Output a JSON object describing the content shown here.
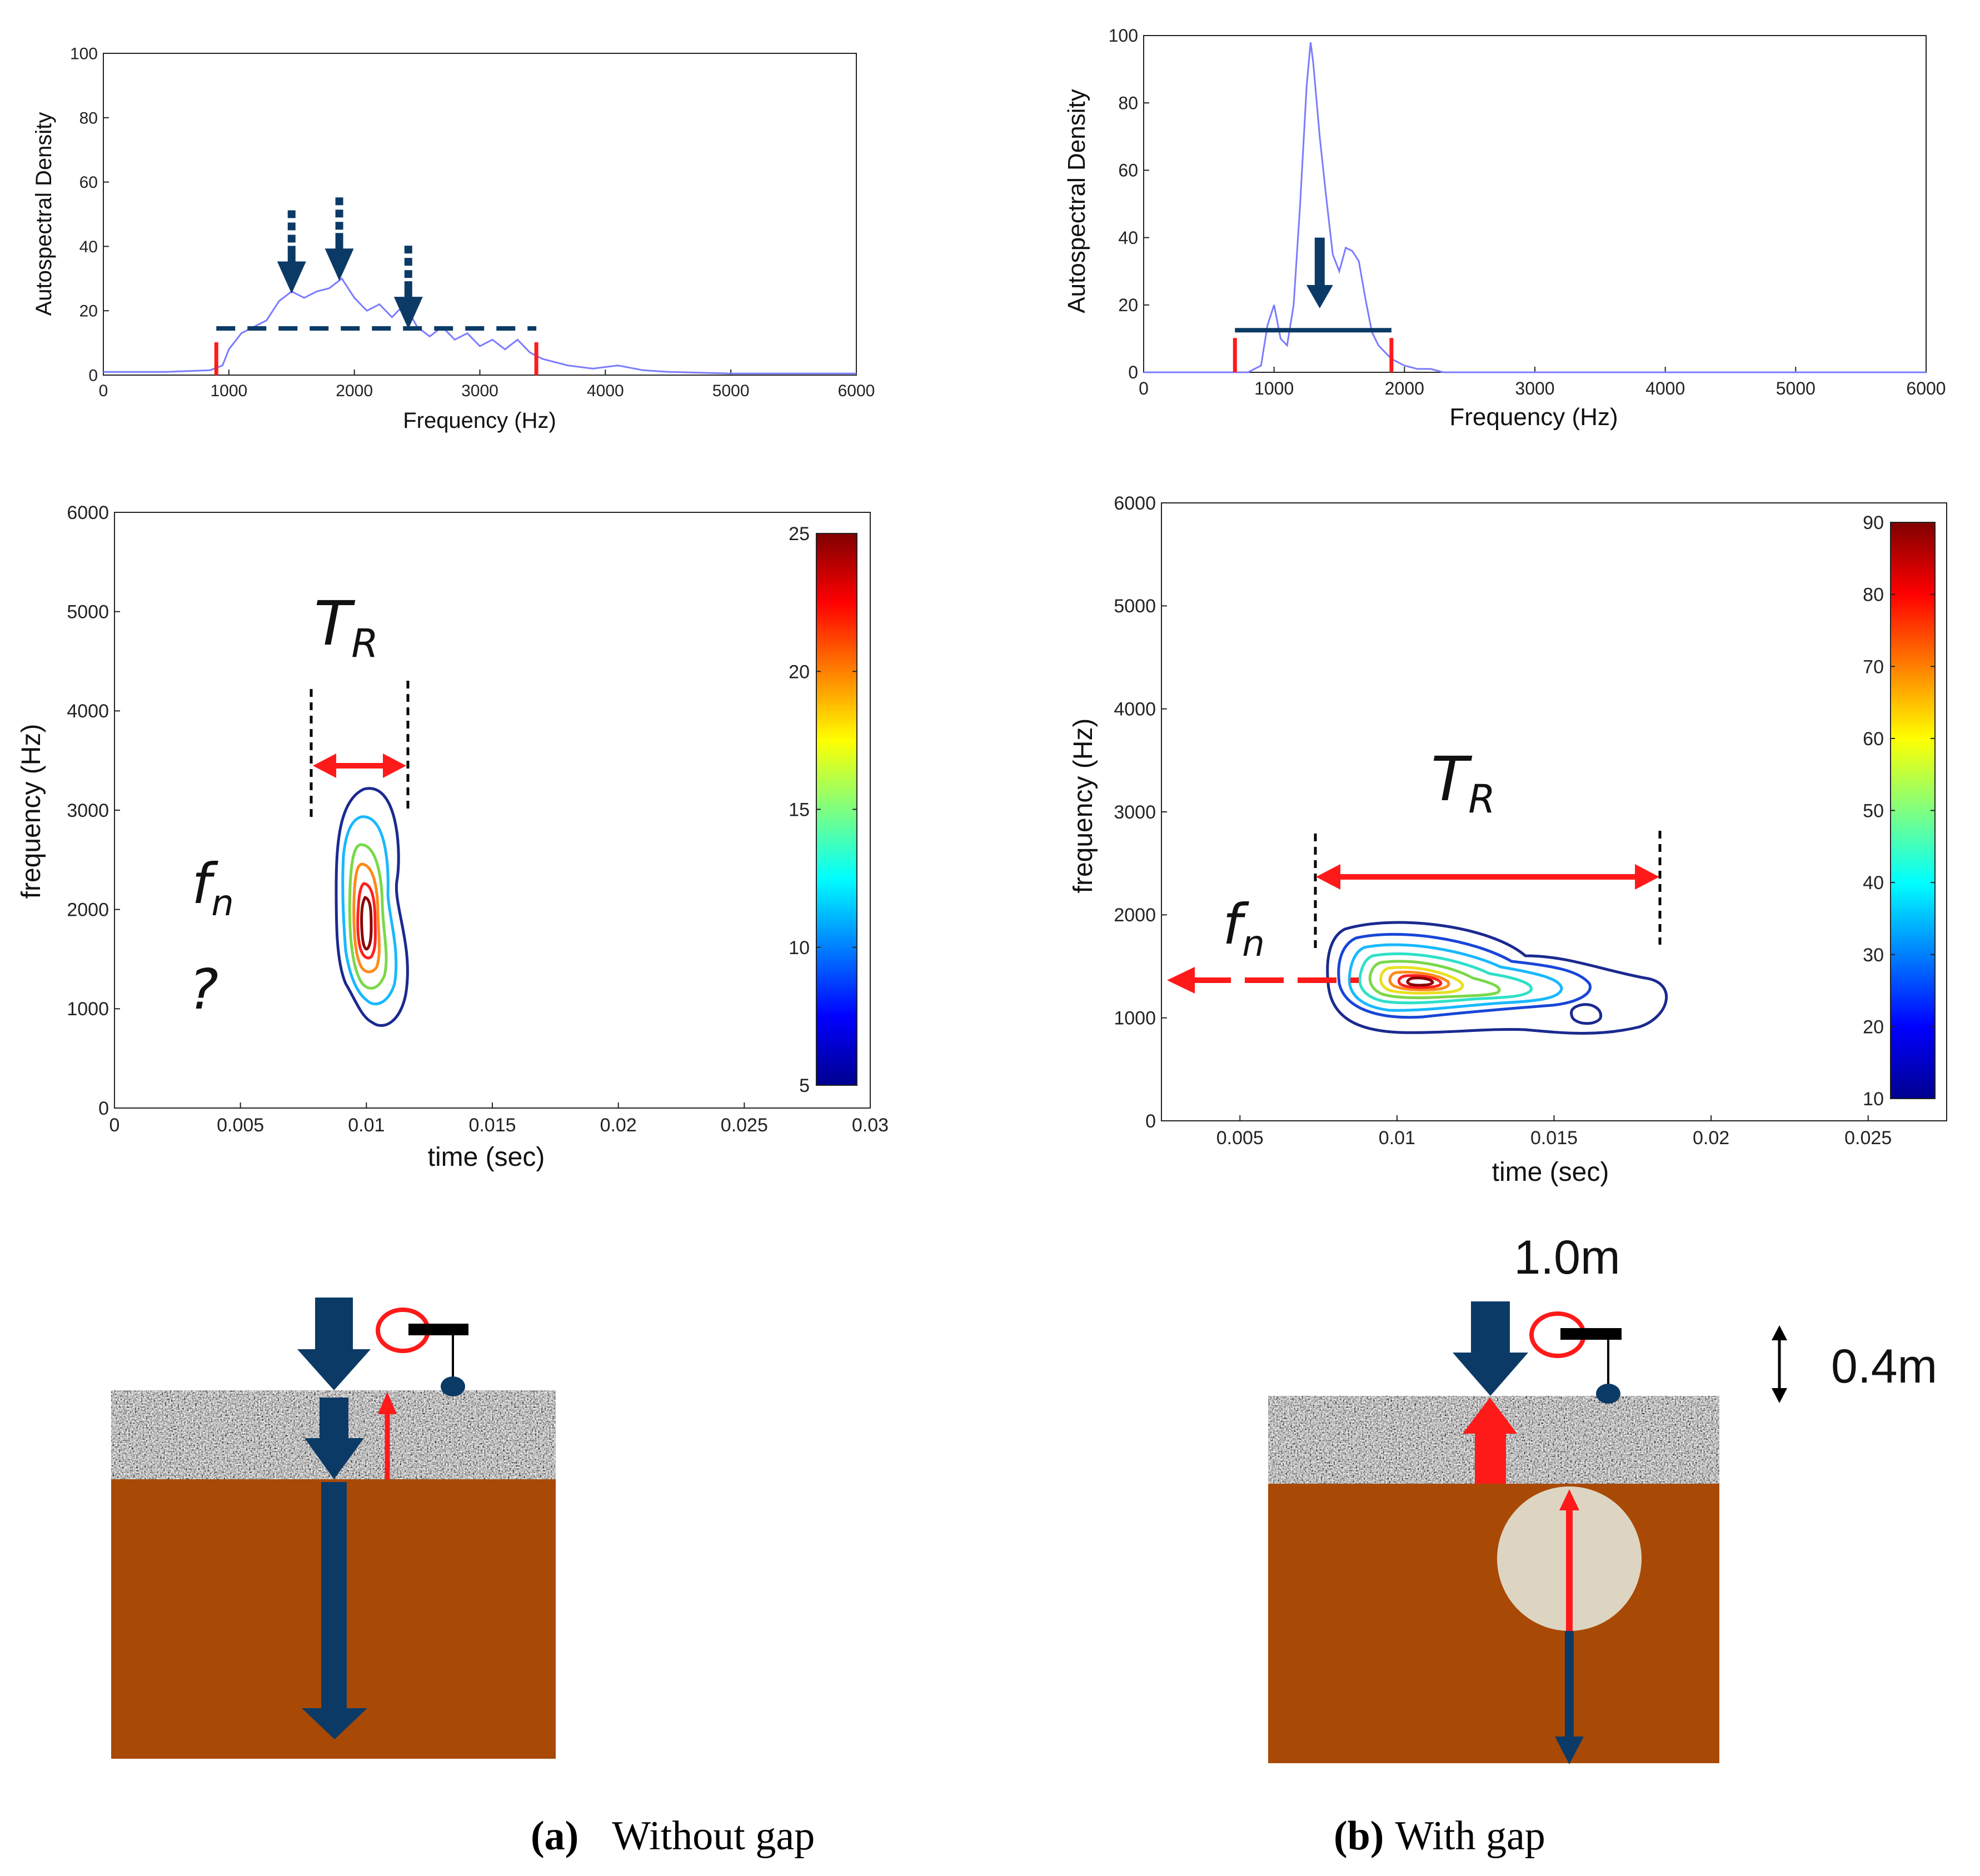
{
  "colors": {
    "spectrum_line": "#7b7bff",
    "marker_red": "#ff1a1a",
    "navy": "#0c3a66",
    "soil": "#a84a05",
    "void": "#ddd5c2"
  },
  "panels": {
    "a": {
      "bold_label": "(a)",
      "caption": "Without gap",
      "symbols": {
        "tr": "T",
        "tr_sub": "R",
        "fn": "f",
        "fn_sub": "n",
        "question": "?"
      }
    },
    "b": {
      "bold_label": "(b)",
      "caption": "With gap",
      "symbols": {
        "tr": "T",
        "tr_sub": "R",
        "fn": "f",
        "fn_sub": "n"
      },
      "dims": {
        "width": "1.0m",
        "depth": "0.4m"
      }
    }
  },
  "chart_data": [
    {
      "id": "spectrum-a",
      "type": "line",
      "xlabel": "Frequency (Hz)",
      "ylabel": "Autospectral Density",
      "xlim": [
        0,
        6000
      ],
      "ylim": [
        0,
        100
      ],
      "xticks": [
        "0",
        "1000",
        "2000",
        "3000",
        "4000",
        "5000",
        "6000"
      ],
      "yticks": [
        "0",
        "20",
        "40",
        "60",
        "80",
        "100"
      ],
      "grid": false,
      "x": [
        0,
        500,
        850,
        950,
        1000,
        1100,
        1200,
        1300,
        1400,
        1500,
        1600,
        1700,
        1800,
        1900,
        2000,
        2100,
        2200,
        2300,
        2400,
        2500,
        2600,
        2700,
        2800,
        2900,
        3000,
        3100,
        3200,
        3300,
        3400,
        3500,
        3700,
        3900,
        4100,
        4300,
        4500,
        5000,
        6000
      ],
      "y": [
        1,
        1,
        1.5,
        3,
        8,
        13,
        15,
        17,
        23,
        26,
        24,
        26,
        27,
        30,
        24,
        20,
        22,
        18,
        22,
        15,
        12,
        15,
        11,
        13,
        9,
        11,
        8,
        11,
        7,
        5,
        3,
        2,
        3,
        1.5,
        1,
        0.5,
        0.5
      ],
      "band": {
        "from": 900,
        "to": 3450,
        "level": 14.5
      },
      "peak_markers": [
        1500,
        1880,
        2430
      ]
    },
    {
      "id": "spectrum-b",
      "type": "line",
      "xlabel": "Frequency (Hz)",
      "ylabel": "Autospectral Density",
      "xlim": [
        0,
        6000
      ],
      "ylim": [
        0,
        100
      ],
      "xticks": [
        "0",
        "1000",
        "2000",
        "3000",
        "4000",
        "5000",
        "6000"
      ],
      "yticks": [
        "0",
        "20",
        "40",
        "60",
        "80",
        "100"
      ],
      "grid": false,
      "x": [
        0,
        800,
        900,
        950,
        1000,
        1050,
        1100,
        1150,
        1200,
        1250,
        1280,
        1300,
        1350,
        1400,
        1450,
        1500,
        1550,
        1600,
        1650,
        1700,
        1750,
        1800,
        1900,
        2000,
        2100,
        2200,
        2300,
        6000
      ],
      "y": [
        0,
        0,
        2,
        14,
        20,
        10,
        8,
        20,
        50,
        85,
        98,
        92,
        70,
        52,
        35,
        30,
        37,
        36,
        33,
        22,
        12,
        8,
        4,
        2,
        1,
        1,
        0,
        0
      ],
      "band": {
        "from": 700,
        "to": 1900,
        "level": 12.5
      },
      "peak_markers": [
        1350
      ]
    },
    {
      "id": "contour-a",
      "type": "contour",
      "xlabel": "time (sec)",
      "ylabel": "frequency (Hz)",
      "xlim": [
        0,
        0.03
      ],
      "ylim": [
        0,
        6000
      ],
      "xticks": [
        "0",
        "0.005",
        "0.01",
        "0.015",
        "0.02",
        "0.025",
        "0.03"
      ],
      "yticks": [
        "0",
        "1000",
        "2000",
        "3000",
        "4000",
        "5000",
        "6000"
      ],
      "colorbar": {
        "min": 5,
        "max": 25,
        "ticks": [
          "5",
          "10",
          "15",
          "20",
          "25"
        ]
      },
      "peak": {
        "time": 0.01,
        "frequency": 1750
      },
      "tr_span": [
        0.0079,
        0.0117
      ]
    },
    {
      "id": "contour-b",
      "type": "contour",
      "xlabel": "time (sec)",
      "ylabel": "frequency (Hz)",
      "xlim": [
        0.0025,
        0.0275
      ],
      "ylim": [
        0,
        6000
      ],
      "xticks": [
        "0.005",
        "0.01",
        "0.015",
        "0.02",
        "0.025"
      ],
      "yticks": [
        "0",
        "1000",
        "2000",
        "3000",
        "4000",
        "5000",
        "6000"
      ],
      "colorbar": {
        "min": 10,
        "max": 90,
        "ticks": [
          "10",
          "20",
          "30",
          "40",
          "50",
          "60",
          "70",
          "80",
          "90"
        ]
      },
      "peak": {
        "time": 0.0105,
        "frequency": 1250
      },
      "tr_span": [
        0.0074,
        0.0183
      ],
      "fn_level": 1300
    }
  ]
}
